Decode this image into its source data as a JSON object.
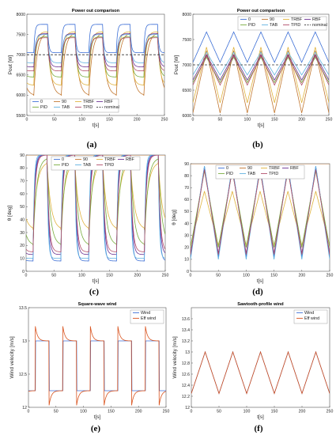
{
  "chart_data": [
    {
      "id": "a",
      "type": "line",
      "caption": "(a)",
      "title": "Power out comparison",
      "xlabel": "t[s]",
      "ylabel": "Pout [W]",
      "xlim": [
        0,
        250
      ],
      "ylim": [
        5500,
        8000
      ],
      "xticks": [
        0,
        50,
        100,
        150,
        200,
        250
      ],
      "yticks": [
        5500,
        6000,
        6500,
        7000,
        7500,
        8000
      ],
      "legend_position": "bottom-left",
      "legend_cols": 4,
      "legend": [
        "0",
        "90",
        "TRBF",
        "RBF",
        "PID",
        "TAB",
        "TPID",
        "nominal"
      ],
      "profile": {
        "kind": "square",
        "period": 50,
        "high_start": 12.5,
        "high_end": 37.5
      },
      "nominal": 7000,
      "series": [
        {
          "name": "0",
          "color": "#3c6fd6",
          "high": 7750,
          "low": 7050,
          "tau": 2.0,
          "style": "solid"
        },
        {
          "name": "90",
          "color": "#c2762e",
          "high": 7550,
          "low": 5990,
          "tau": 6.0,
          "style": "solid"
        },
        {
          "name": "TRBF",
          "color": "#e0b23c",
          "high": 7570,
          "low": 6250,
          "tau": 4.0,
          "style": "solid"
        },
        {
          "name": "RBF",
          "color": "#6a2f91",
          "high": 7520,
          "low": 6700,
          "tau": 3.0,
          "style": "solid"
        },
        {
          "name": "PID",
          "color": "#77ac3c",
          "high": 7450,
          "low": 6450,
          "tau": 3.5,
          "style": "solid"
        },
        {
          "name": "TAB",
          "color": "#5fb0e0",
          "high": 7500,
          "low": 6800,
          "tau": 3.0,
          "style": "solid"
        },
        {
          "name": "TPID",
          "color": "#b14a66",
          "high": 7420,
          "low": 6600,
          "tau": 3.0,
          "style": "solid"
        },
        {
          "name": "nominal",
          "color": "#333333",
          "style": "dashed"
        }
      ]
    },
    {
      "id": "b",
      "type": "line",
      "caption": "(b)",
      "title": "Power out comparison",
      "xlabel": "t[s]",
      "ylabel": "Pout [W]",
      "xlim": [
        0,
        250
      ],
      "ylim": [
        6000,
        8000
      ],
      "xticks": [
        0,
        50,
        100,
        150,
        200,
        250
      ],
      "yticks": [
        6000,
        6500,
        7000,
        7500,
        8000
      ],
      "legend_position": "top-right",
      "legend_cols": 4,
      "legend": [
        "0",
        "90",
        "TRBF",
        "RBF",
        "PID",
        "TAB",
        "TPID",
        "nominal"
      ],
      "profile": {
        "kind": "tri",
        "period": 50,
        "peak": 25
      },
      "nominal": 7000,
      "series": [
        {
          "name": "0",
          "color": "#3c6fd6",
          "high": 7650,
          "low": 7050,
          "style": "solid"
        },
        {
          "name": "90",
          "color": "#c2762e",
          "high": 7280,
          "low": 6050,
          "style": "solid"
        },
        {
          "name": "TRBF",
          "color": "#e0b23c",
          "high": 7350,
          "low": 6250,
          "style": "solid"
        },
        {
          "name": "RBF",
          "color": "#6a2f91",
          "high": 7200,
          "low": 6700,
          "style": "solid"
        },
        {
          "name": "PID",
          "color": "#77ac3c",
          "high": 7150,
          "low": 6650,
          "style": "solid"
        },
        {
          "name": "TAB",
          "color": "#5fb0e0",
          "high": 7250,
          "low": 6800,
          "style": "solid"
        },
        {
          "name": "TPID",
          "color": "#b14a66",
          "high": 7180,
          "low": 6600,
          "style": "solid"
        },
        {
          "name": "nominal",
          "color": "#333333",
          "style": "dashed"
        }
      ]
    },
    {
      "id": "c",
      "type": "line",
      "caption": "(c)",
      "title": "",
      "xlabel": "t[s]",
      "ylabel": "θ [deg]",
      "xlim": [
        0,
        250
      ],
      "ylim": [
        0,
        90
      ],
      "xticks": [
        0,
        50,
        100,
        150,
        200,
        250
      ],
      "yticks": [
        0,
        10,
        20,
        30,
        40,
        50,
        60,
        70,
        80,
        90
      ],
      "legend_position": "top",
      "legend_cols": 4,
      "legend": [
        "0",
        "90",
        "TRBF",
        "RBF",
        "PID",
        "TAB",
        "TPID"
      ],
      "profile": {
        "kind": "square",
        "period": 50,
        "high_start": 12.5,
        "high_end": 37.5
      },
      "series": [
        {
          "name": "0",
          "color": "#3c6fd6",
          "high": 90,
          "low": 8,
          "tau": 2.5
        },
        {
          "name": "90",
          "color": "#c2762e",
          "high": 90,
          "low": 90,
          "tau": 3
        },
        {
          "name": "TRBF",
          "color": "#e0b23c",
          "high": 85,
          "low": 32,
          "tau": 7
        },
        {
          "name": "RBF",
          "color": "#6a2f91",
          "high": 90,
          "low": 13,
          "tau": 3
        },
        {
          "name": "PID",
          "color": "#77ac3c",
          "high": 88,
          "low": 20,
          "tau": 6
        },
        {
          "name": "TAB",
          "color": "#5fb0e0",
          "high": 90,
          "low": 10,
          "tau": 2
        },
        {
          "name": "TPID",
          "color": "#b14a66",
          "high": 90,
          "low": 15,
          "tau": 3.5
        }
      ]
    },
    {
      "id": "d",
      "type": "line",
      "caption": "(d)",
      "title": "",
      "xlabel": "t[s]",
      "ylabel": "θ [deg]",
      "xlim": [
        0,
        250
      ],
      "ylim": [
        0,
        90
      ],
      "xticks": [
        0,
        50,
        100,
        150,
        200,
        250
      ],
      "yticks": [
        0,
        10,
        20,
        30,
        40,
        50,
        60,
        70,
        80,
        90
      ],
      "legend_position": "top",
      "legend_cols": 4,
      "legend": [
        "0",
        "90",
        "TRBF",
        "RBF",
        "PID",
        "TAB",
        "TPID"
      ],
      "profile": {
        "kind": "tri",
        "period": 50,
        "peak": 25
      },
      "series": [
        {
          "name": "0",
          "color": "#3c6fd6",
          "high": 88,
          "low": 12
        },
        {
          "name": "90",
          "color": "#c2762e",
          "high": 90,
          "low": 90
        },
        {
          "name": "TRBF",
          "color": "#e0b23c",
          "high": 67,
          "low": 22
        },
        {
          "name": "RBF",
          "color": "#6a2f91",
          "high": 86,
          "low": 15
        },
        {
          "name": "PID",
          "color": "#77ac3c",
          "high": 84,
          "low": 20
        },
        {
          "name": "TAB",
          "color": "#5fb0e0",
          "high": 88,
          "low": 10
        },
        {
          "name": "TPID",
          "color": "#b14a66",
          "high": 85,
          "low": 14
        }
      ]
    },
    {
      "id": "e",
      "type": "line",
      "caption": "(e)",
      "title": "Square-wave wind",
      "xlabel": "t[s]",
      "ylabel": "Wind velocity [m/s]",
      "xlim": [
        0,
        250
      ],
      "ylim": [
        12,
        13.5
      ],
      "xticks": [
        0,
        50,
        100,
        150,
        200,
        250
      ],
      "yticks": [
        12,
        12.5,
        13,
        13.5
      ],
      "legend_position": "top-right",
      "legend_cols": 1,
      "legend": [
        "Wind",
        "Eff wind"
      ],
      "profile": {
        "kind": "square",
        "period": 50,
        "high_start": 12.5,
        "high_end": 37.5
      },
      "series": [
        {
          "name": "Wind",
          "color": "#3c6fd6",
          "high": 13.0,
          "low": 12.25
        },
        {
          "name": "Eff wind",
          "color": "#d9531e",
          "high": 13.0,
          "low": 12.25,
          "overshoot": 0.22
        }
      ]
    },
    {
      "id": "f",
      "type": "line",
      "caption": "(f)",
      "title": "Sawtooth-profile wind",
      "xlabel": "t[s]",
      "ylabel": "Wind velocity [m/s]",
      "xlim": [
        0,
        250
      ],
      "ylim": [
        12,
        13.8
      ],
      "xticks": [
        0,
        50,
        100,
        150,
        200,
        250
      ],
      "yticks": [
        12,
        12.2,
        12.4,
        12.6,
        12.8,
        13,
        13.2,
        13.4,
        13.6
      ],
      "legend_position": "top-right",
      "legend_cols": 1,
      "legend": [
        "Wind",
        "Eff wind"
      ],
      "profile": {
        "kind": "tri",
        "period": 50,
        "peak": 25
      },
      "series": [
        {
          "name": "Wind",
          "color": "#3c6fd6",
          "high": 13.0,
          "low": 12.25
        },
        {
          "name": "Eff wind",
          "color": "#d9531e",
          "high": 13.0,
          "low": 12.25
        }
      ]
    }
  ]
}
